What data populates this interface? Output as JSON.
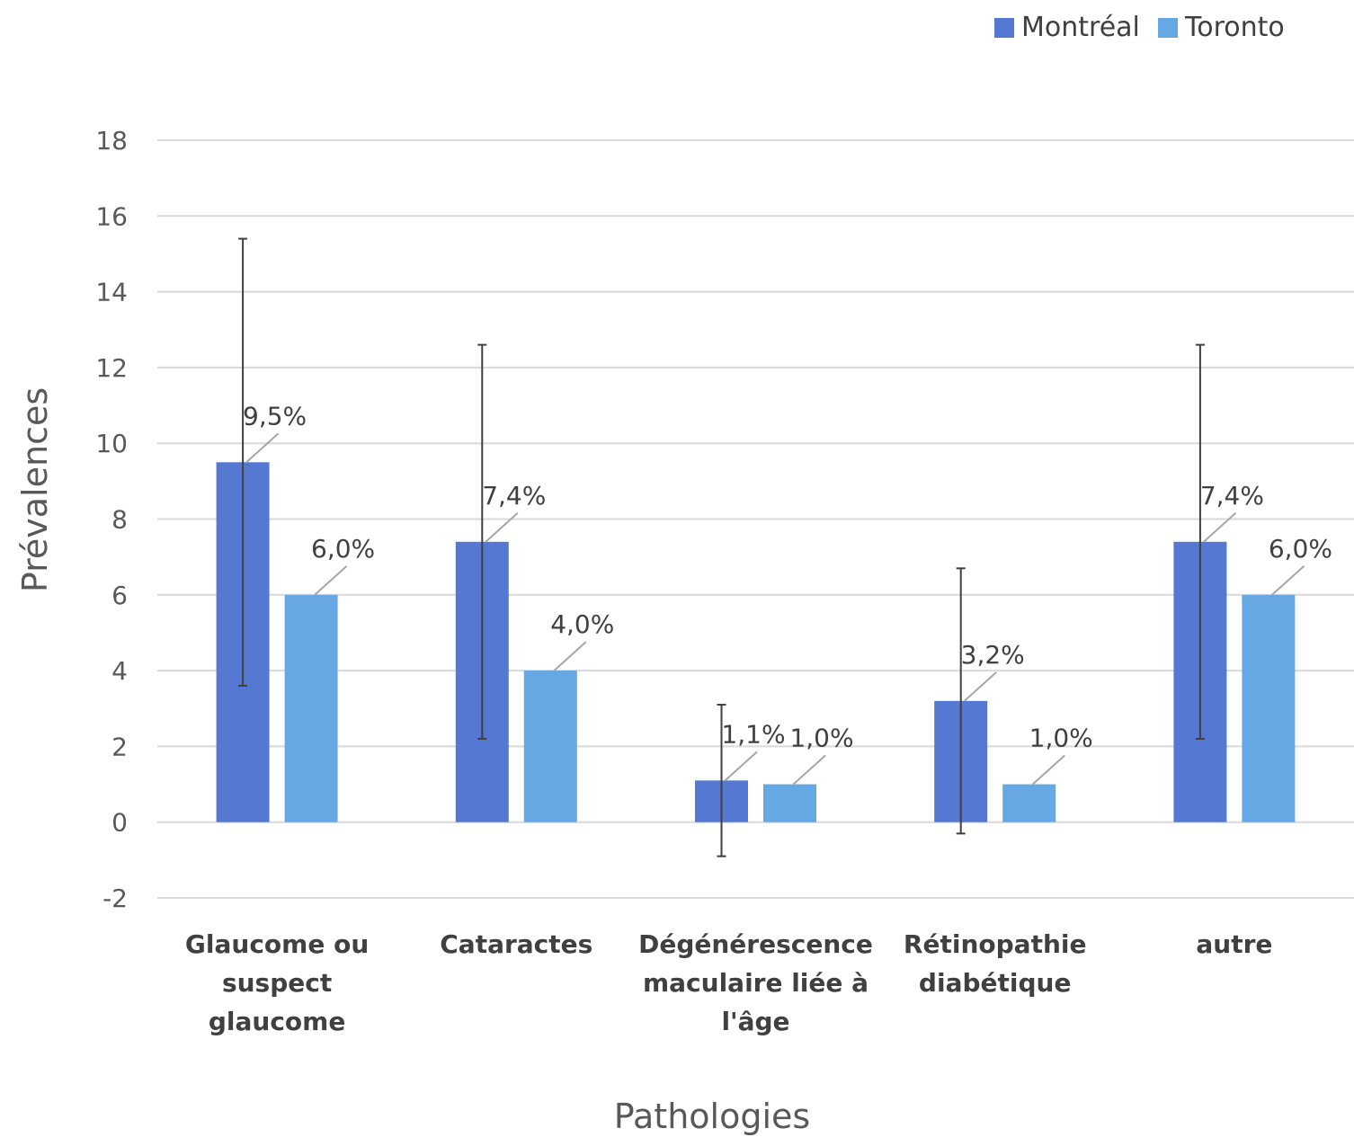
{
  "chart_data": {
    "type": "bar",
    "xlabel": "Pathologies",
    "ylabel": "Prévalences",
    "ylim": [
      -2,
      18
    ],
    "yticks": [
      -2,
      0,
      2,
      4,
      6,
      8,
      10,
      12,
      14,
      16,
      18
    ],
    "grid": true,
    "legend_position": "top-right",
    "categories": [
      [
        "Glaucome ou",
        "suspect",
        "glaucome"
      ],
      [
        "Cataractes"
      ],
      [
        "Dégénérescence",
        "maculaire liée à",
        "l'âge"
      ],
      [
        "Rétinopathie",
        "diabétique"
      ],
      [
        "autre"
      ]
    ],
    "series": [
      {
        "name": "Montréal",
        "color": "#5578D2",
        "values": [
          9.5,
          7.4,
          1.1,
          3.2,
          7.4
        ],
        "labels": [
          "9,5%",
          "7,4%",
          "1,1%",
          "3,2%",
          "7,4%"
        ],
        "error_low": [
          3.6,
          2.2,
          -0.9,
          -0.3,
          2.2
        ],
        "error_high": [
          15.4,
          12.6,
          3.1,
          6.7,
          12.6
        ]
      },
      {
        "name": "Toronto",
        "color": "#65A8E3",
        "values": [
          6.0,
          4.0,
          1.0,
          1.0,
          6.0
        ],
        "labels": [
          "6,0%",
          "4,0%",
          "1,0%",
          "1,0%",
          "6,0%"
        ]
      }
    ]
  }
}
